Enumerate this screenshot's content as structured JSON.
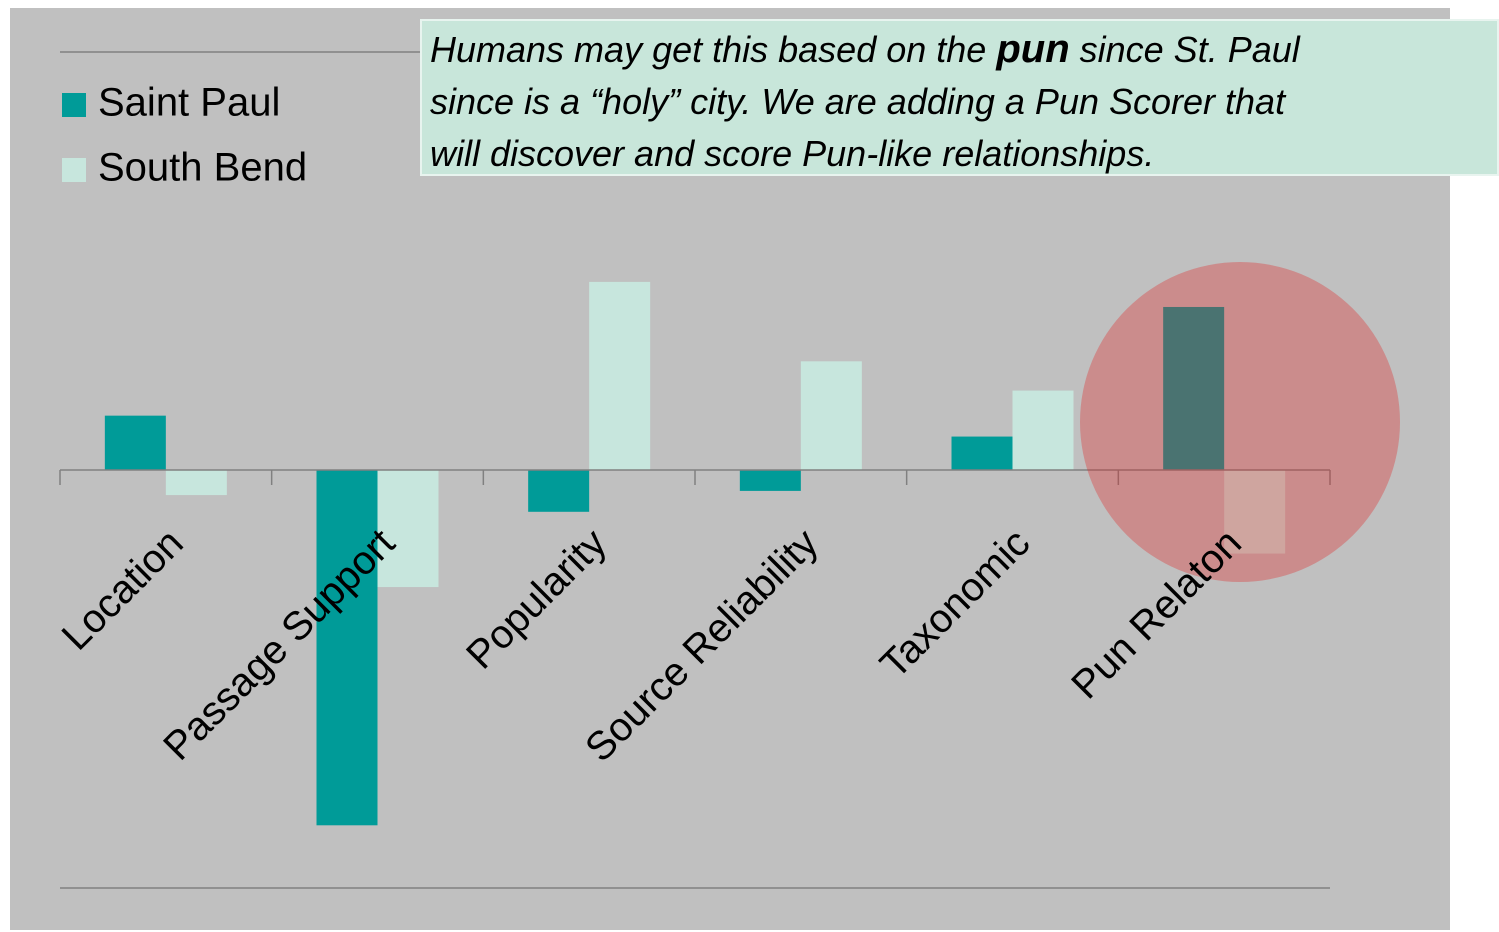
{
  "chart_data": {
    "type": "bar",
    "categories": [
      "Location",
      "Passage Support",
      "Popularity",
      "Source Reliability",
      "Taxonomic",
      "Pun Relaton"
    ],
    "series": [
      {
        "name": "Saint Paul",
        "color": "#009b98",
        "values": [
          0.13,
          -0.85,
          -0.1,
          -0.05,
          0.08,
          0.39
        ]
      },
      {
        "name": "South Bend",
        "color": "#c7e6dd",
        "values": [
          -0.06,
          -0.28,
          0.45,
          0.26,
          0.19,
          -0.2
        ]
      }
    ],
    "ylim": [
      -1,
      1
    ],
    "legend": "upper left",
    "annotation": [
      [
        "Humans may get this based on the ",
        "pun",
        " since St. Paul"
      ],
      [
        "since is a “holy” city. We are adding a Pun Scorer that"
      ],
      [
        "will discover and score Pun-like relationships."
      ]
    ]
  }
}
